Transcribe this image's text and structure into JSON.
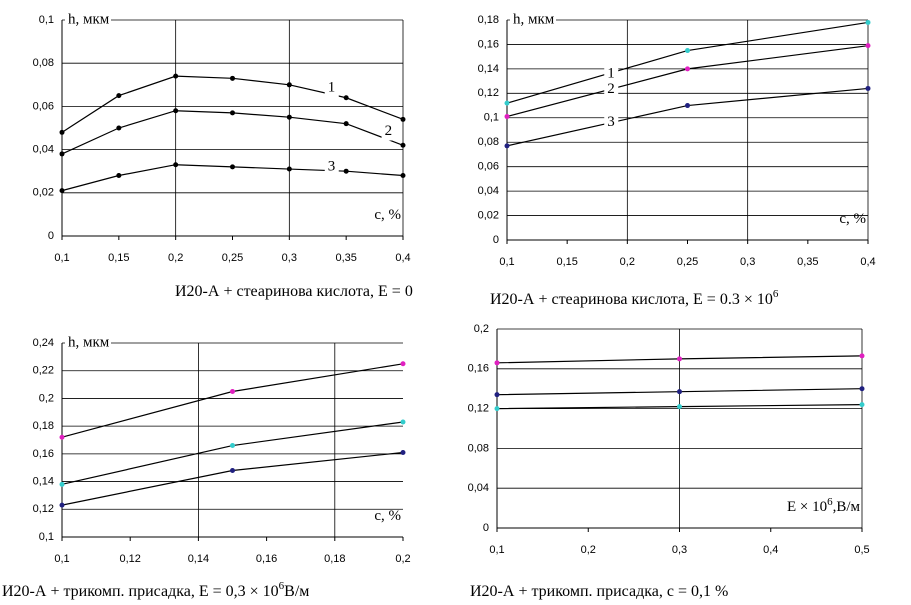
{
  "chart_data": [
    {
      "type": "line",
      "y_label": "h, мкм",
      "x_label": "c, %",
      "caption": "И20-А + стеаринова кислота, E = 0",
      "x": [
        0.1,
        0.15,
        0.2,
        0.25,
        0.3,
        0.35,
        0.4
      ],
      "xlim": [
        0.1,
        0.4
      ],
      "xticks": [
        {
          "value": 0.1,
          "label": "0,1"
        },
        {
          "value": 0.15,
          "label": "0,15"
        },
        {
          "value": 0.2,
          "label": "0,2"
        },
        {
          "value": 0.25,
          "label": "0,25"
        },
        {
          "value": 0.3,
          "label": "0,3"
        },
        {
          "value": 0.35,
          "label": "0,35"
        },
        {
          "value": 0.4,
          "label": "0,4"
        }
      ],
      "ylim": [
        0,
        0.1
      ],
      "yticks": [
        0,
        {
          "value": 0.02,
          "label": "0,02"
        },
        {
          "value": 0.04,
          "label": "0,04"
        },
        {
          "value": 0.06,
          "label": "0,06"
        },
        {
          "value": 0.08,
          "label": "0,08"
        },
        {
          "value": 0.1,
          "label": "0,1"
        }
      ],
      "grid": true,
      "series": [
        {
          "name": "1",
          "color": "#000000",
          "marker_color": "#000000",
          "values": [
            0.048,
            0.065,
            0.074,
            0.073,
            0.07,
            0.064,
            0.054
          ]
        },
        {
          "name": "2",
          "color": "#000000",
          "marker_color": "#000000",
          "values": [
            0.038,
            0.05,
            0.058,
            0.057,
            0.055,
            0.052,
            0.042
          ]
        },
        {
          "name": "3",
          "color": "#000000",
          "marker_color": "#000000",
          "values": [
            0.021,
            0.028,
            0.033,
            0.032,
            0.031,
            0.03,
            0.028
          ]
        }
      ]
    },
    {
      "type": "line",
      "y_label": "h, мкм",
      "x_label": "c, %",
      "caption": "И20-А + стеаринова кислота, E = 0.3 × 10",
      "caption_sup": "6",
      "x": [
        0.1,
        0.25,
        0.4
      ],
      "xlim": [
        0.1,
        0.4
      ],
      "xticks": [
        {
          "value": 0.1,
          "label": "0,1"
        },
        {
          "value": 0.15,
          "label": "0,15"
        },
        {
          "value": 0.2,
          "label": "0,2"
        },
        {
          "value": 0.25,
          "label": "0,25"
        },
        {
          "value": 0.3,
          "label": "0,3"
        },
        {
          "value": 0.35,
          "label": "0,35"
        },
        {
          "value": 0.4,
          "label": "0,4"
        }
      ],
      "ylim": [
        0,
        0.18
      ],
      "yticks": [
        0,
        {
          "value": 0.02,
          "label": "0,02"
        },
        {
          "value": 0.04,
          "label": "0,04"
        },
        {
          "value": 0.06,
          "label": "0,06"
        },
        {
          "value": 0.08,
          "label": "0,08"
        },
        {
          "value": 0.1,
          "label": "0,1"
        },
        {
          "value": 0.12,
          "label": "0,12"
        },
        {
          "value": 0.14,
          "label": "0,14"
        },
        {
          "value": 0.16,
          "label": "0,16"
        },
        {
          "value": 0.18,
          "label": "0,18"
        }
      ],
      "grid": true,
      "series": [
        {
          "name": "1",
          "color": "#000000",
          "marker_color": "#33cccc",
          "values": [
            0.112,
            0.155,
            0.178
          ]
        },
        {
          "name": "2",
          "color": "#000000",
          "marker_color": "#e020c0",
          "values": [
            0.101,
            0.14,
            0.159
          ]
        },
        {
          "name": "3",
          "color": "#000000",
          "marker_color": "#202080",
          "values": [
            0.077,
            0.11,
            0.124
          ]
        }
      ]
    },
    {
      "type": "line",
      "y_label": "h, мкм",
      "x_label": "c, %",
      "caption": "И20-А + трикомп. присадка, E = 0,3 × 10",
      "caption_sup": "6",
      "caption_suffix": "В/м",
      "x": [
        0.1,
        0.15,
        0.2
      ],
      "xlim": [
        0.1,
        0.2
      ],
      "xticks": [
        {
          "value": 0.1,
          "label": "0,1"
        },
        {
          "value": 0.12,
          "label": "0,12"
        },
        {
          "value": 0.14,
          "label": "0,14"
        },
        {
          "value": 0.16,
          "label": "0,16"
        },
        {
          "value": 0.18,
          "label": "0,18"
        },
        {
          "value": 0.2,
          "label": "0,2"
        }
      ],
      "ylim": [
        0.1,
        0.24
      ],
      "yticks": [
        {
          "value": 0.1,
          "label": "0,1"
        },
        {
          "value": 0.12,
          "label": "0,12"
        },
        {
          "value": 0.14,
          "label": "0,14"
        },
        {
          "value": 0.16,
          "label": "0,16"
        },
        {
          "value": 0.18,
          "label": "0,18"
        },
        {
          "value": 0.2,
          "label": "0,2"
        },
        {
          "value": 0.22,
          "label": "0,22"
        },
        {
          "value": 0.24,
          "label": "0,24"
        }
      ],
      "grid": true,
      "series": [
        {
          "color": "#000000",
          "marker_color": "#e020c0",
          "values": [
            0.172,
            0.205,
            0.225
          ]
        },
        {
          "color": "#000000",
          "marker_color": "#33cccc",
          "values": [
            0.138,
            0.166,
            0.183
          ]
        },
        {
          "color": "#000000",
          "marker_color": "#202080",
          "values": [
            0.123,
            0.148,
            0.161
          ]
        }
      ]
    },
    {
      "type": "line",
      "x_label": "E × 10",
      "x_label_sup": "6",
      "x_label_suffix": ",В/м",
      "caption": "И20-А + трикомп. присадка, c = 0,1 %",
      "x": [
        0.1,
        0.3,
        0.5
      ],
      "xlim": [
        0.1,
        0.5
      ],
      "xticks": [
        {
          "value": 0.1,
          "label": "0,1"
        },
        {
          "value": 0.2,
          "label": "0,2"
        },
        {
          "value": 0.3,
          "label": "0,3"
        },
        {
          "value": 0.4,
          "label": "0,4"
        },
        {
          "value": 0.5,
          "label": "0,5"
        }
      ],
      "ylim": [
        0,
        0.2
      ],
      "yticks": [
        0,
        {
          "value": 0.04,
          "label": "0,04"
        },
        {
          "value": 0.08,
          "label": "0,08"
        },
        {
          "value": 0.12,
          "label": "0,12"
        },
        {
          "value": 0.16,
          "label": "0,16"
        },
        {
          "value": 0.2,
          "label": "0,2"
        }
      ],
      "grid": true,
      "series": [
        {
          "color": "#000000",
          "marker_color": "#e020c0",
          "values": [
            0.166,
            0.17,
            0.173
          ]
        },
        {
          "color": "#000000",
          "marker_color": "#202080",
          "values": [
            0.134,
            0.137,
            0.14
          ]
        },
        {
          "color": "#000000",
          "marker_color": "#33cccc",
          "values": [
            0.12,
            0.122,
            0.124
          ]
        }
      ]
    }
  ]
}
